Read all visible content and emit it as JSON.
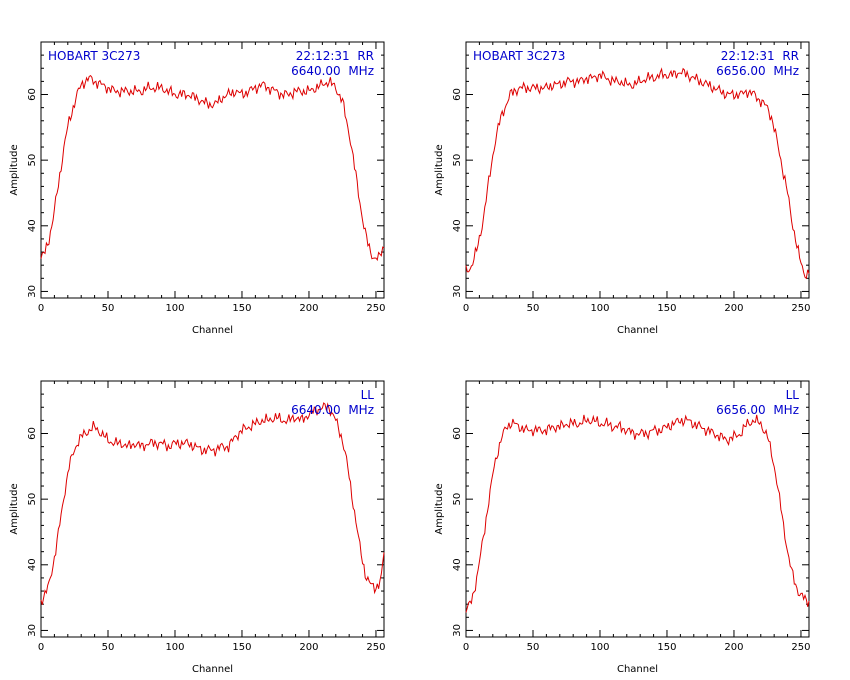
{
  "chart_data": [
    {
      "type": "line",
      "xlabel": "Channel",
      "ylabel": "Amplitude",
      "xlim": [
        0,
        256
      ],
      "ylim": [
        29,
        68
      ],
      "xticks": [
        0,
        50,
        100,
        150,
        200,
        250
      ],
      "yticks": [
        30,
        40,
        50,
        60
      ],
      "grid": false,
      "line_color": "#dd0000",
      "annotation_color": "#0000cc",
      "annotations": {
        "left": "HOBART 3C273",
        "right_top": "22:12:31  RR",
        "right_bottom": "6640.00  MHz"
      },
      "series": [
        {
          "x": [
            0,
            3,
            6,
            9,
            12,
            15,
            18,
            21,
            24,
            27,
            30,
            33,
            36,
            40,
            45,
            50,
            55,
            60,
            65,
            70,
            75,
            80,
            85,
            90,
            95,
            100,
            105,
            110,
            115,
            120,
            125,
            130,
            135,
            140,
            145,
            150,
            155,
            160,
            165,
            170,
            175,
            180,
            185,
            190,
            195,
            200,
            205,
            210,
            215,
            220,
            225,
            228,
            231,
            234,
            237,
            240,
            243,
            246,
            249,
            252,
            254,
            256
          ],
          "y": [
            35,
            36,
            38,
            41,
            45,
            49,
            53,
            56,
            58,
            60,
            61.5,
            62,
            62.5,
            62,
            61.5,
            61,
            60.5,
            60.5,
            60.5,
            60.5,
            60.5,
            61,
            61,
            61,
            60.5,
            60,
            60,
            60,
            59.5,
            59,
            58.5,
            58.5,
            59.5,
            60,
            60.5,
            60,
            60.5,
            61,
            61.5,
            61,
            60.5,
            60,
            60,
            60.5,
            60.5,
            60.5,
            61,
            61.5,
            62,
            61,
            59,
            56,
            53,
            49,
            45,
            41,
            38,
            36,
            35,
            35,
            36,
            37
          ]
        }
      ]
    },
    {
      "type": "line",
      "xlabel": "Channel",
      "ylabel": "Amplitude",
      "xlim": [
        0,
        256
      ],
      "ylim": [
        29,
        68
      ],
      "xticks": [
        0,
        50,
        100,
        150,
        200,
        250
      ],
      "yticks": [
        30,
        40,
        50,
        60
      ],
      "grid": false,
      "line_color": "#dd0000",
      "annotation_color": "#0000cc",
      "annotations": {
        "left": "HOBART 3C273",
        "right_top": "22:12:31  RR",
        "right_bottom": "6656.00  MHz"
      },
      "series": [
        {
          "x": [
            0,
            3,
            6,
            9,
            12,
            15,
            18,
            21,
            24,
            27,
            30,
            33,
            36,
            40,
            45,
            50,
            55,
            60,
            65,
            70,
            75,
            80,
            85,
            90,
            95,
            100,
            105,
            110,
            115,
            120,
            125,
            130,
            135,
            140,
            145,
            150,
            155,
            160,
            165,
            170,
            175,
            180,
            185,
            190,
            195,
            200,
            205,
            210,
            215,
            220,
            225,
            228,
            231,
            234,
            237,
            240,
            243,
            246,
            249,
            252,
            254,
            256
          ],
          "y": [
            33,
            33.5,
            35,
            37,
            40,
            44,
            48,
            52,
            55,
            57,
            58.5,
            60,
            60.5,
            61,
            61,
            61,
            61,
            61,
            61.5,
            61.5,
            62,
            62,
            62,
            62.5,
            62.5,
            63,
            62.5,
            62,
            62,
            61.5,
            61.5,
            62,
            62.5,
            62.5,
            63,
            63,
            63,
            63.5,
            63,
            62.5,
            62,
            61.5,
            61,
            60.5,
            60,
            60,
            60,
            60.5,
            60,
            59,
            58,
            56.5,
            54,
            51,
            48,
            45,
            41,
            38,
            35,
            33,
            32.5,
            33
          ]
        }
      ]
    },
    {
      "type": "line",
      "xlabel": "Channel",
      "ylabel": "Amplitude",
      "xlim": [
        0,
        256
      ],
      "ylim": [
        29,
        68
      ],
      "xticks": [
        0,
        50,
        100,
        150,
        200,
        250
      ],
      "yticks": [
        30,
        40,
        50,
        60
      ],
      "grid": false,
      "line_color": "#dd0000",
      "annotation_color": "#0000cc",
      "annotations": {
        "left": "",
        "right_top": "LL",
        "right_bottom": "6640.00  MHz"
      },
      "series": [
        {
          "x": [
            0,
            3,
            6,
            9,
            12,
            15,
            18,
            21,
            24,
            27,
            30,
            33,
            36,
            40,
            45,
            50,
            55,
            60,
            65,
            70,
            75,
            80,
            85,
            90,
            95,
            100,
            105,
            110,
            115,
            120,
            125,
            130,
            135,
            140,
            145,
            150,
            155,
            160,
            165,
            170,
            175,
            180,
            185,
            190,
            195,
            200,
            205,
            210,
            215,
            220,
            225,
            228,
            231,
            234,
            237,
            240,
            243,
            246,
            249,
            252,
            254,
            256
          ],
          "y": [
            34.5,
            35.5,
            37,
            40,
            43.5,
            47.5,
            51.5,
            55,
            57,
            58.5,
            59.5,
            60,
            60.5,
            61,
            60,
            59,
            58.5,
            58.5,
            58,
            58.5,
            58,
            58.5,
            58.5,
            58.5,
            58,
            58.5,
            58.5,
            58.5,
            58,
            57.5,
            57.5,
            57.5,
            58,
            58,
            59.5,
            60.5,
            61,
            61.5,
            62,
            62,
            62.5,
            62,
            62,
            62.5,
            62,
            63,
            63.5,
            64,
            64,
            62,
            59,
            56,
            52,
            48,
            44,
            40.5,
            38,
            37,
            36.5,
            37,
            38,
            42
          ]
        }
      ]
    },
    {
      "type": "line",
      "xlabel": "Channel",
      "ylabel": "Amplitude",
      "xlim": [
        0,
        256
      ],
      "ylim": [
        29,
        68
      ],
      "xticks": [
        0,
        50,
        100,
        150,
        200,
        250
      ],
      "yticks": [
        30,
        40,
        50,
        60
      ],
      "grid": false,
      "line_color": "#dd0000",
      "annotation_color": "#0000cc",
      "annotations": {
        "left": "",
        "right_top": "LL",
        "right_bottom": "6656.00  MHz"
      },
      "series": [
        {
          "x": [
            0,
            3,
            6,
            9,
            12,
            15,
            18,
            21,
            24,
            27,
            30,
            33,
            36,
            40,
            45,
            50,
            55,
            60,
            65,
            70,
            75,
            80,
            85,
            90,
            95,
            100,
            105,
            110,
            115,
            120,
            125,
            130,
            135,
            140,
            145,
            150,
            155,
            160,
            165,
            170,
            175,
            180,
            185,
            190,
            195,
            200,
            205,
            210,
            215,
            220,
            225,
            228,
            231,
            234,
            237,
            240,
            243,
            246,
            249,
            252,
            254,
            256
          ],
          "y": [
            33,
            34,
            36,
            39,
            43,
            47,
            51,
            55,
            57.5,
            59.5,
            61,
            61.5,
            61.5,
            61,
            60.5,
            60.5,
            60.5,
            60.5,
            61,
            61,
            61.5,
            61.5,
            61.5,
            62,
            62,
            61.5,
            61.5,
            61,
            61,
            60.5,
            60,
            60,
            60,
            60.5,
            60.5,
            61,
            61.5,
            62,
            62,
            61.5,
            61,
            60.5,
            60,
            59.5,
            59,
            59.5,
            60,
            61.5,
            62,
            61.5,
            59.5,
            57,
            54,
            50,
            46,
            42,
            39,
            37,
            35.5,
            35,
            34.5,
            34.5
          ]
        }
      ]
    }
  ]
}
